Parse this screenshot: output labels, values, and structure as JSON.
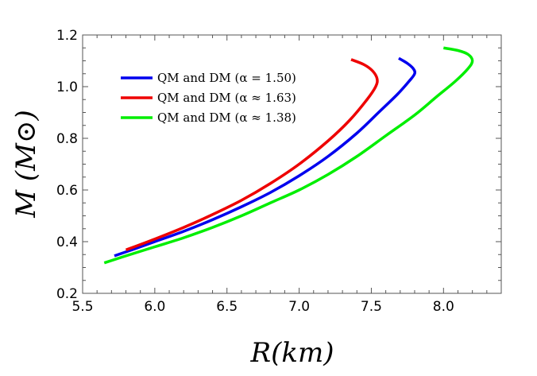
{
  "chart_data": {
    "type": "line",
    "xlabel": "R(km)",
    "ylabel": "M (M⊙)",
    "xlim": [
      5.5,
      8.4
    ],
    "ylim": [
      0.2,
      1.2
    ],
    "xticks": [
      "5.5",
      "6.0",
      "6.5",
      "7.0",
      "7.5",
      "8.0"
    ],
    "xtick_values": [
      5.5,
      6.0,
      6.5,
      7.0,
      7.5,
      8.0
    ],
    "yticks": [
      "0.2",
      "0.4",
      "0.6",
      "0.8",
      "1.0",
      "1.2"
    ],
    "ytick_values": [
      0.2,
      0.4,
      0.6,
      0.8,
      1.0,
      1.2
    ],
    "grid": false,
    "legend_position": "top-left",
    "series": [
      {
        "name": "QM and DM (α = 1.50)",
        "color": "#0000ee",
        "points": [
          [
            5.72,
            0.345
          ],
          [
            5.85,
            0.37
          ],
          [
            6.0,
            0.4
          ],
          [
            6.2,
            0.44
          ],
          [
            6.4,
            0.485
          ],
          [
            6.6,
            0.535
          ],
          [
            6.8,
            0.59
          ],
          [
            7.0,
            0.655
          ],
          [
            7.2,
            0.73
          ],
          [
            7.4,
            0.82
          ],
          [
            7.55,
            0.9
          ],
          [
            7.68,
            0.97
          ],
          [
            7.76,
            1.02
          ],
          [
            7.8,
            1.05
          ],
          [
            7.79,
            1.07
          ],
          [
            7.75,
            1.09
          ],
          [
            7.69,
            1.11
          ]
        ]
      },
      {
        "name": "QM and DM (α ≈ 1.63)",
        "color": "#ee0000",
        "points": [
          [
            5.8,
            0.368
          ],
          [
            6.0,
            0.41
          ],
          [
            6.2,
            0.455
          ],
          [
            6.4,
            0.505
          ],
          [
            6.6,
            0.56
          ],
          [
            6.8,
            0.625
          ],
          [
            7.0,
            0.7
          ],
          [
            7.2,
            0.79
          ],
          [
            7.35,
            0.87
          ],
          [
            7.47,
            0.95
          ],
          [
            7.53,
            1.0
          ],
          [
            7.54,
            1.03
          ],
          [
            7.51,
            1.06
          ],
          [
            7.45,
            1.085
          ],
          [
            7.36,
            1.105
          ]
        ]
      },
      {
        "name": "QM and DM (α ≈ 1.38)",
        "color": "#00ee00",
        "points": [
          [
            5.65,
            0.318
          ],
          [
            5.8,
            0.345
          ],
          [
            6.0,
            0.38
          ],
          [
            6.2,
            0.415
          ],
          [
            6.4,
            0.455
          ],
          [
            6.6,
            0.5
          ],
          [
            6.8,
            0.55
          ],
          [
            7.0,
            0.6
          ],
          [
            7.2,
            0.66
          ],
          [
            7.4,
            0.73
          ],
          [
            7.6,
            0.81
          ],
          [
            7.8,
            0.89
          ],
          [
            7.95,
            0.96
          ],
          [
            8.08,
            1.02
          ],
          [
            8.17,
            1.07
          ],
          [
            8.2,
            1.1
          ],
          [
            8.17,
            1.125
          ],
          [
            8.1,
            1.14
          ],
          [
            8.0,
            1.15
          ]
        ]
      }
    ]
  }
}
